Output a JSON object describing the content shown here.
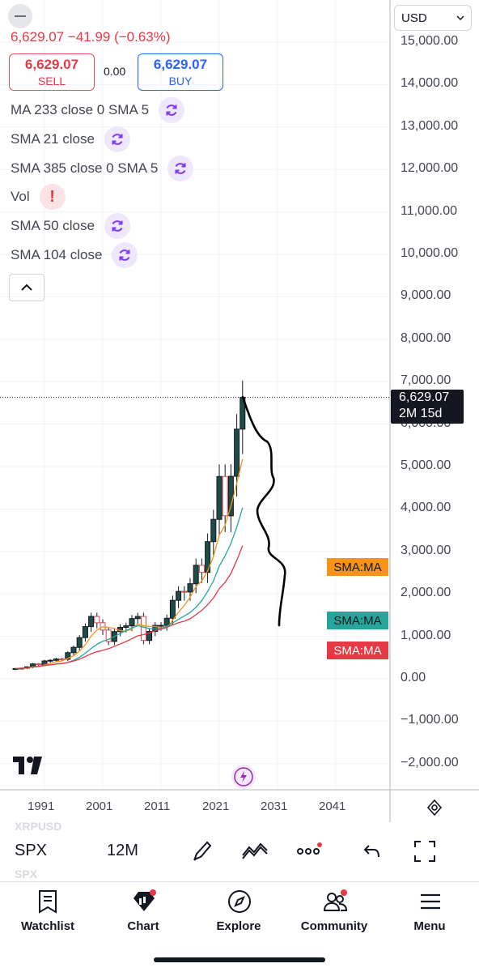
{
  "header": {
    "price_change": "6,629.07  −41.99 (−0.63%)",
    "sell_price": "6,629.07",
    "sell_label": "SELL",
    "spread": "0.00",
    "buy_price": "6,629.07",
    "buy_label": "BUY"
  },
  "indicators": [
    {
      "label": "MA 233 close 0 SMA 5",
      "icon": "refresh-icon"
    },
    {
      "label": "SMA 21 close",
      "icon": "refresh-icon"
    },
    {
      "label": "SMA 385 close 0 SMA 5",
      "icon": "refresh-icon"
    },
    {
      "label": "Vol",
      "icon": "warning-icon"
    },
    {
      "label": "SMA 50 close",
      "icon": "refresh-icon"
    },
    {
      "label": "SMA 104 close",
      "icon": "refresh-icon"
    }
  ],
  "currency": "USD",
  "y_axis_labels": [
    "15,000.00",
    "14,000.00",
    "13,000.00",
    "12,000.00",
    "11,000.00",
    "10,000.00",
    "9,000.00",
    "8,000.00",
    "7,000.00",
    "6,000.00",
    "5,000.00",
    "4,000.00",
    "3,000.00",
    "2,000.00",
    "1,000.00",
    "0.00",
    "−1,000.00",
    "−2,000.00"
  ],
  "price_tag": {
    "price": "6,629.07",
    "countdown": "2M 15d"
  },
  "ma_tags": [
    {
      "label": "SMA:MA",
      "color": "#f7931a"
    },
    {
      "label": "SMA:MA",
      "color": "#26a69a"
    },
    {
      "label": "SMA:MA",
      "color": "#e53945"
    }
  ],
  "x_axis_labels": [
    "1991",
    "2001",
    "2011",
    "2021",
    "2031",
    "2041"
  ],
  "toolbar": {
    "symbol": "SPX",
    "interval": "12M",
    "ghost_top": "XRPUSD",
    "ghost_bottom": "SPX"
  },
  "nav": [
    {
      "label": "Watchlist"
    },
    {
      "label": "Chart"
    },
    {
      "label": "Explore"
    },
    {
      "label": "Community"
    },
    {
      "label": "Menu"
    }
  ],
  "colors": {
    "up": "#26a69a",
    "down": "#e53945",
    "accent": "#2962ff",
    "purple": "#9c27b0"
  },
  "chart_data": {
    "type": "candlestick",
    "title": "",
    "ylim": [
      -2000,
      15000
    ],
    "x_ticks": [
      "1991",
      "2001",
      "2011",
      "2021",
      "2031",
      "2041"
    ],
    "grid": true,
    "last_price": 6629.07,
    "candles_yearly_close": [
      {
        "x": 1986,
        "close": 240
      },
      {
        "x": 1987,
        "close": 250
      },
      {
        "x": 1988,
        "close": 280
      },
      {
        "x": 1989,
        "close": 350
      },
      {
        "x": 1990,
        "close": 330
      },
      {
        "x": 1991,
        "close": 420
      },
      {
        "x": 1992,
        "close": 435
      },
      {
        "x": 1993,
        "close": 466
      },
      {
        "x": 1994,
        "close": 459
      },
      {
        "x": 1995,
        "close": 615
      },
      {
        "x": 1996,
        "close": 740
      },
      {
        "x": 1997,
        "close": 970
      },
      {
        "x": 1998,
        "close": 1229
      },
      {
        "x": 1999,
        "close": 1469
      },
      {
        "x": 2000,
        "close": 1320
      },
      {
        "x": 2001,
        "close": 1148
      },
      {
        "x": 2002,
        "close": 880
      },
      {
        "x": 2003,
        "close": 1112
      },
      {
        "x": 2004,
        "close": 1212
      },
      {
        "x": 2005,
        "close": 1248
      },
      {
        "x": 2006,
        "close": 1418
      },
      {
        "x": 2007,
        "close": 1468
      },
      {
        "x": 2008,
        "close": 903
      },
      {
        "x": 2009,
        "close": 1115
      },
      {
        "x": 2010,
        "close": 1258
      },
      {
        "x": 2011,
        "close": 1258
      },
      {
        "x": 2012,
        "close": 1426
      },
      {
        "x": 2013,
        "close": 1848
      },
      {
        "x": 2014,
        "close": 2059
      },
      {
        "x": 2015,
        "close": 2044
      },
      {
        "x": 2016,
        "close": 2239
      },
      {
        "x": 2017,
        "close": 2674
      },
      {
        "x": 2018,
        "close": 2507
      },
      {
        "x": 2019,
        "close": 3231
      },
      {
        "x": 2020,
        "close": 3756
      },
      {
        "x": 2021,
        "close": 4766
      },
      {
        "x": 2022,
        "close": 3840
      },
      {
        "x": 2023,
        "close": 4770
      },
      {
        "x": 2024,
        "close": 5882
      },
      {
        "x": 2025,
        "close": 6629
      }
    ],
    "series": [
      {
        "name": "SMA:MA",
        "color": "#f7931a"
      },
      {
        "name": "SMA:MA",
        "color": "#26a69a"
      },
      {
        "name": "SMA:MA",
        "color": "#e53945"
      }
    ]
  }
}
